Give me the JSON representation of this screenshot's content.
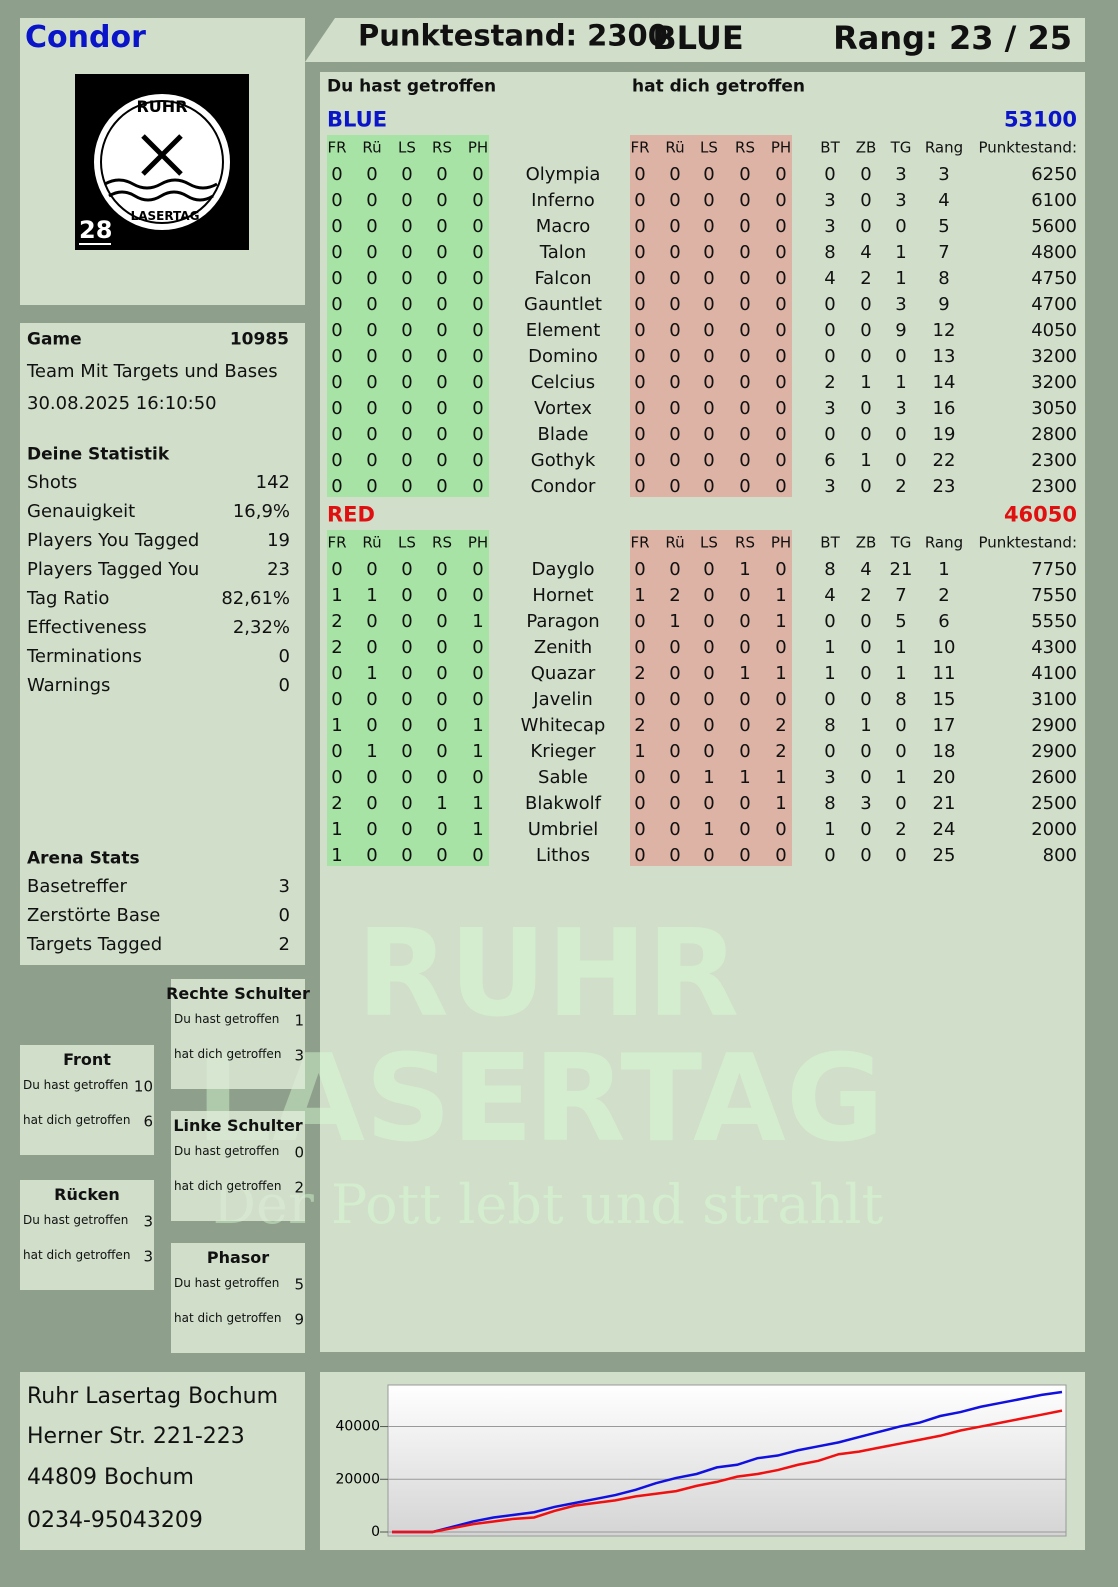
{
  "header": {
    "player": "Condor",
    "score": "Punktestand: 2300",
    "team": "BLUE",
    "rank": "Rang: 23 / 25"
  },
  "logo": {
    "top": "RUHR",
    "bottom": "LASERTAG",
    "number": "28"
  },
  "game": {
    "label": "Game",
    "id": 10985,
    "mode": "Team Mit Targets und Bases",
    "datetime": "30.08.2025 16:10:50"
  },
  "statistics": {
    "title": "Deine Statistik",
    "rows": [
      [
        "Shots",
        142
      ],
      [
        "Genauigkeit",
        "16,9%"
      ],
      [
        "Players You Tagged",
        19
      ],
      [
        "Players Tagged You",
        23
      ],
      [
        "Tag Ratio",
        "82,61%"
      ],
      [
        "Effectiveness",
        "2,32%"
      ],
      [
        "Terminations",
        0
      ],
      [
        "Warnings",
        0
      ]
    ]
  },
  "arena": {
    "title": "Arena Stats",
    "rows": [
      [
        "Basetreffer",
        3
      ],
      [
        "Zerstörte Base",
        0
      ],
      [
        "Targets Tagged",
        2
      ]
    ]
  },
  "zones": [
    {
      "title": "Rechte Schulter",
      "rows": [
        [
          "Du hast getroffen",
          1
        ],
        [
          "hat dich getroffen",
          3
        ]
      ]
    },
    {
      "title": "Front",
      "rows": [
        [
          "Du hast getroffen",
          10
        ],
        [
          "hat dich getroffen",
          6
        ]
      ]
    },
    {
      "title": "Linke Schulter",
      "rows": [
        [
          "Du hast getroffen",
          0
        ],
        [
          "hat dich getroffen",
          2
        ]
      ]
    },
    {
      "title": "Rücken",
      "rows": [
        [
          "Du hast getroffen",
          3
        ],
        [
          "hat dich getroffen",
          3
        ]
      ]
    },
    {
      "title": "Phasor",
      "rows": [
        [
          "Du hast getroffen",
          5
        ],
        [
          "hat dich getroffen",
          9
        ]
      ]
    }
  ],
  "scoreboard": {
    "given_header": "Du hast getroffen",
    "received_header": "hat dich getroffen",
    "hit_columns": [
      "FR",
      "Rü",
      "LS",
      "RS",
      "PH"
    ],
    "stat_columns": [
      "BT",
      "ZB",
      "TG",
      "Rang",
      "Punktestand:"
    ],
    "teams": [
      {
        "name": "BLUE",
        "score": 53100,
        "color": "#0a14c8",
        "rows": [
          [
            0,
            0,
            0,
            0,
            0,
            "Olympia",
            0,
            0,
            0,
            0,
            0,
            0,
            0,
            3,
            3,
            6250
          ],
          [
            0,
            0,
            0,
            0,
            0,
            "Inferno",
            0,
            0,
            0,
            0,
            0,
            3,
            0,
            3,
            4,
            6100
          ],
          [
            0,
            0,
            0,
            0,
            0,
            "Macro",
            0,
            0,
            0,
            0,
            0,
            3,
            0,
            0,
            5,
            5600
          ],
          [
            0,
            0,
            0,
            0,
            0,
            "Talon",
            0,
            0,
            0,
            0,
            0,
            8,
            4,
            1,
            7,
            4800
          ],
          [
            0,
            0,
            0,
            0,
            0,
            "Falcon",
            0,
            0,
            0,
            0,
            0,
            4,
            2,
            1,
            8,
            4750
          ],
          [
            0,
            0,
            0,
            0,
            0,
            "Gauntlet",
            0,
            0,
            0,
            0,
            0,
            0,
            0,
            3,
            9,
            4700
          ],
          [
            0,
            0,
            0,
            0,
            0,
            "Element",
            0,
            0,
            0,
            0,
            0,
            0,
            0,
            9,
            12,
            4050
          ],
          [
            0,
            0,
            0,
            0,
            0,
            "Domino",
            0,
            0,
            0,
            0,
            0,
            0,
            0,
            0,
            13,
            3200
          ],
          [
            0,
            0,
            0,
            0,
            0,
            "Celcius",
            0,
            0,
            0,
            0,
            0,
            2,
            1,
            1,
            14,
            3200
          ],
          [
            0,
            0,
            0,
            0,
            0,
            "Vortex",
            0,
            0,
            0,
            0,
            0,
            3,
            0,
            3,
            16,
            3050
          ],
          [
            0,
            0,
            0,
            0,
            0,
            "Blade",
            0,
            0,
            0,
            0,
            0,
            0,
            0,
            0,
            19,
            2800
          ],
          [
            0,
            0,
            0,
            0,
            0,
            "Gothyk",
            0,
            0,
            0,
            0,
            0,
            6,
            1,
            0,
            22,
            2300
          ],
          [
            0,
            0,
            0,
            0,
            0,
            "Condor",
            0,
            0,
            0,
            0,
            0,
            3,
            0,
            2,
            23,
            2300
          ]
        ]
      },
      {
        "name": "RED",
        "score": 46050,
        "color": "#e01010",
        "rows": [
          [
            0,
            0,
            0,
            0,
            0,
            "Dayglo",
            0,
            0,
            0,
            1,
            0,
            8,
            4,
            21,
            1,
            7750
          ],
          [
            1,
            1,
            0,
            0,
            0,
            "Hornet",
            1,
            2,
            0,
            0,
            1,
            4,
            2,
            7,
            2,
            7550
          ],
          [
            2,
            0,
            0,
            0,
            1,
            "Paragon",
            0,
            1,
            0,
            0,
            1,
            0,
            0,
            5,
            6,
            5550
          ],
          [
            2,
            0,
            0,
            0,
            0,
            "Zenith",
            0,
            0,
            0,
            0,
            0,
            1,
            0,
            1,
            10,
            4300
          ],
          [
            0,
            1,
            0,
            0,
            0,
            "Quazar",
            2,
            0,
            0,
            1,
            1,
            1,
            0,
            1,
            11,
            4100
          ],
          [
            0,
            0,
            0,
            0,
            0,
            "Javelin",
            0,
            0,
            0,
            0,
            0,
            0,
            0,
            8,
            15,
            3100
          ],
          [
            1,
            0,
            0,
            0,
            1,
            "Whitecap",
            2,
            0,
            0,
            0,
            2,
            8,
            1,
            0,
            17,
            2900
          ],
          [
            0,
            1,
            0,
            0,
            1,
            "Krieger",
            1,
            0,
            0,
            0,
            2,
            0,
            0,
            0,
            18,
            2900
          ],
          [
            0,
            0,
            0,
            0,
            0,
            "Sable",
            0,
            0,
            1,
            1,
            1,
            3,
            0,
            1,
            20,
            2600
          ],
          [
            2,
            0,
            0,
            1,
            1,
            "Blakwolf",
            0,
            0,
            0,
            0,
            1,
            8,
            3,
            0,
            21,
            2500
          ],
          [
            1,
            0,
            0,
            0,
            1,
            "Umbriel",
            0,
            0,
            1,
            0,
            0,
            1,
            0,
            2,
            24,
            2000
          ],
          [
            1,
            0,
            0,
            0,
            0,
            "Lithos",
            0,
            0,
            0,
            0,
            0,
            0,
            0,
            0,
            25,
            800
          ]
        ]
      }
    ]
  },
  "watermark": {
    "line1": "RUHR",
    "line2": "LASERTAG",
    "slogan": "Der Pott lebt und strahlt"
  },
  "address": [
    "Ruhr Lasertag Bochum",
    "Herner Str. 221-223",
    "44809 Bochum",
    "0234-95043209"
  ],
  "chart_data": {
    "type": "line",
    "series": [
      {
        "color": "#1010e0",
        "values": [
          0,
          0,
          0,
          2000,
          4000,
          5500,
          6500,
          7500,
          9500,
          11000,
          12500,
          14000,
          16000,
          18500,
          20500,
          22000,
          24500,
          25500,
          28000,
          29000,
          31000,
          32500,
          34000,
          36000,
          38000,
          40000,
          41500,
          44000,
          45500,
          47500,
          49000,
          50500,
          52000,
          53100
        ]
      },
      {
        "color": "#f01010",
        "values": [
          0,
          0,
          0,
          1500,
          3000,
          4000,
          5000,
          5500,
          8000,
          10000,
          11000,
          12000,
          13500,
          14500,
          15500,
          17500,
          19000,
          21000,
          22000,
          23500,
          25500,
          27000,
          29500,
          30500,
          32000,
          33500,
          35000,
          36500,
          38500,
          40000,
          41500,
          43000,
          44500,
          46050
        ]
      }
    ],
    "ylim": [
      0,
      55000
    ],
    "yticks": [
      0,
      20000,
      40000
    ],
    "grid": true
  }
}
